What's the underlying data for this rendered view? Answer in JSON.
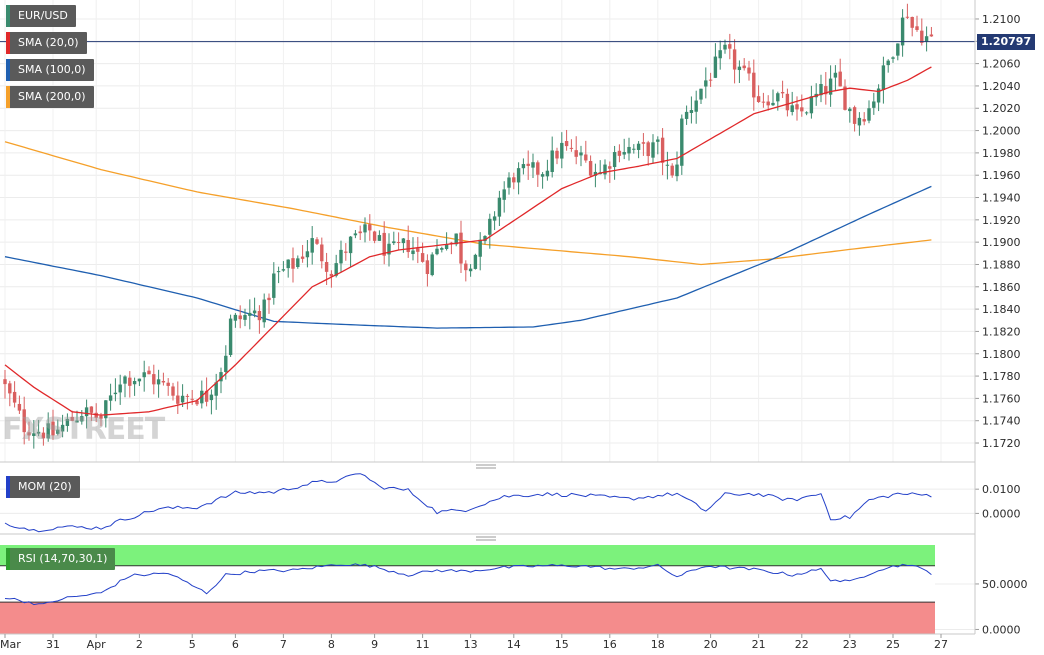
{
  "symbol": "EUR/USD",
  "watermark": "FXSTREET",
  "current_price_label": "1.20797",
  "colors": {
    "bull": "#3a8a6e",
    "bear": "#d95f5f",
    "sma20": "#e0282a",
    "sma100": "#1f5fb0",
    "sma200": "#f5a02a",
    "mom": "#2340c8",
    "rsi": "#2340c8",
    "rsi_over": "#7cf27c",
    "rsi_under": "#f48c8c",
    "price_line": "#243a73"
  },
  "legends": {
    "symbol": "EUR/USD",
    "sma20": "SMA (20,0)",
    "sma100": "SMA (100,0)",
    "sma200": "SMA (200,0)",
    "mom": "MOM (20)",
    "rsi": "RSI (14,70,30,1)"
  },
  "chart_data": [
    {
      "type": "candlestick",
      "title": "EUR/USD",
      "ylim": [
        1.1703,
        1.2117
      ],
      "yticks": [
        "1.2100",
        "1.2080",
        "1.2060",
        "1.2040",
        "1.2020",
        "1.2000",
        "1.1980",
        "1.1960",
        "1.1940",
        "1.1920",
        "1.1900",
        "1.1880",
        "1.1860",
        "1.1840",
        "1.1820",
        "1.1800",
        "1.1780",
        "1.1760",
        "1.1740",
        "1.1720"
      ],
      "xticks": [
        "Mar",
        "31",
        "Apr",
        "2",
        "5",
        "6",
        "7",
        "8",
        "9",
        "11",
        "13",
        "14",
        "15",
        "16",
        "18",
        "20",
        "21",
        "22",
        "23",
        "25",
        "27"
      ],
      "current_price": 1.20797,
      "anchors": {
        "close": [
          [
            0,
            1.177
          ],
          [
            4,
            1.1735
          ],
          [
            10,
            1.1728
          ],
          [
            16,
            1.1748
          ],
          [
            20,
            1.1742
          ],
          [
            24,
            1.1778
          ],
          [
            30,
            1.178
          ],
          [
            36,
            1.1762
          ],
          [
            42,
            1.1762
          ],
          [
            45,
            1.1788
          ],
          [
            48,
            1.183
          ],
          [
            54,
            1.184
          ],
          [
            56,
            1.1868
          ],
          [
            60,
            1.188
          ],
          [
            64,
            1.19
          ],
          [
            68,
            1.1875
          ],
          [
            72,
            1.19
          ],
          [
            76,
            1.191
          ],
          [
            80,
            1.189
          ],
          [
            84,
            1.1898
          ],
          [
            88,
            1.188
          ],
          [
            92,
            1.1905
          ],
          [
            96,
            1.188
          ],
          [
            100,
            1.19
          ],
          [
            103,
            1.194
          ],
          [
            106,
            1.196
          ],
          [
            112,
            1.1965
          ],
          [
            116,
            1.1985
          ],
          [
            120,
            1.1975
          ],
          [
            124,
            1.1962
          ],
          [
            128,
            1.1985
          ],
          [
            132,
            1.1982
          ],
          [
            136,
            1.1985
          ],
          [
            139,
            1.1955
          ],
          [
            142,
            1.2015
          ],
          [
            146,
            1.2045
          ],
          [
            150,
            1.207
          ],
          [
            153,
            1.2055
          ],
          [
            157,
            1.203
          ],
          [
            161,
            1.203
          ],
          [
            165,
            1.2012
          ],
          [
            169,
            1.203
          ],
          [
            173,
            1.2045
          ],
          [
            177,
            1.201
          ],
          [
            180,
            1.202
          ],
          [
            184,
            1.2062
          ],
          [
            187,
            1.2098
          ],
          [
            190,
            1.209
          ],
          [
            193,
            1.208
          ]
        ]
      },
      "series": [
        {
          "name": "SMA (20,0)",
          "anchors": [
            [
              0,
              1.179
            ],
            [
              6,
              1.177
            ],
            [
              14,
              1.1748
            ],
            [
              20,
              1.1745
            ],
            [
              30,
              1.1748
            ],
            [
              40,
              1.1758
            ],
            [
              48,
              1.179
            ],
            [
              56,
              1.1825
            ],
            [
              64,
              1.186
            ],
            [
              70,
              1.1873
            ],
            [
              76,
              1.1887
            ],
            [
              82,
              1.1893
            ],
            [
              92,
              1.1898
            ],
            [
              100,
              1.1902
            ],
            [
              108,
              1.1925
            ],
            [
              116,
              1.1948
            ],
            [
              124,
              1.1962
            ],
            [
              132,
              1.1968
            ],
            [
              140,
              1.1975
            ],
            [
              148,
              1.1995
            ],
            [
              156,
              1.2015
            ],
            [
              164,
              1.2025
            ],
            [
              172,
              1.2035
            ],
            [
              176,
              1.2038
            ],
            [
              182,
              1.2035
            ],
            [
              188,
              1.2045
            ],
            [
              193,
              1.2057
            ]
          ]
        },
        {
          "name": "SMA (100,0)",
          "anchors": [
            [
              0,
              1.1887
            ],
            [
              20,
              1.187
            ],
            [
              40,
              1.185
            ],
            [
              56,
              1.1829
            ],
            [
              72,
              1.1826
            ],
            [
              90,
              1.1823
            ],
            [
              110,
              1.1824
            ],
            [
              120,
              1.183
            ],
            [
              140,
              1.185
            ],
            [
              160,
              1.1885
            ],
            [
              170,
              1.1905
            ],
            [
              180,
              1.1925
            ],
            [
              193,
              1.195
            ]
          ]
        },
        {
          "name": "SMA (200,0)",
          "anchors": [
            [
              0,
              1.199
            ],
            [
              20,
              1.1965
            ],
            [
              40,
              1.1945
            ],
            [
              60,
              1.193
            ],
            [
              80,
              1.1913
            ],
            [
              100,
              1.1898
            ],
            [
              130,
              1.1887
            ],
            [
              145,
              1.188
            ],
            [
              160,
              1.1885
            ],
            [
              175,
              1.1893
            ],
            [
              193,
              1.1902
            ]
          ]
        }
      ]
    },
    {
      "type": "line",
      "title": "MOM (20)",
      "ylim": [
        -0.0085,
        0.0175
      ],
      "yticks": [
        "0.0100",
        "0.0000"
      ],
      "series": [
        {
          "name": "MOM (20)",
          "anchors": [
            [
              0,
              -0.004
            ],
            [
              6,
              -0.007
            ],
            [
              12,
              -0.0055
            ],
            [
              20,
              -0.006
            ],
            [
              24,
              -0.003
            ],
            [
              32,
              0.002
            ],
            [
              40,
              0.0025
            ],
            [
              48,
              0.0085
            ],
            [
              56,
              0.0088
            ],
            [
              64,
              0.0125
            ],
            [
              70,
              0.0138
            ],
            [
              74,
              0.0168
            ],
            [
              78,
              0.011
            ],
            [
              84,
              0.0095
            ],
            [
              90,
              0.0005
            ],
            [
              96,
              0.0015
            ],
            [
              104,
              0.007
            ],
            [
              112,
              0.008
            ],
            [
              120,
              0.0075
            ],
            [
              130,
              0.006
            ],
            [
              140,
              0.0082
            ],
            [
              146,
              0.001
            ],
            [
              150,
              0.0078
            ],
            [
              156,
              0.0081
            ],
            [
              164,
              0.0054
            ],
            [
              170,
              0.0082
            ],
            [
              172,
              -0.002
            ],
            [
              176,
              -0.0016
            ],
            [
              180,
              0.0055
            ],
            [
              186,
              0.0081
            ],
            [
              193,
              0.0075
            ]
          ]
        }
      ]
    },
    {
      "type": "line",
      "title": "RSI (14,70,30,1)",
      "ylim": [
        -5,
        95
      ],
      "yticks": [
        "50.0000",
        "0.0000"
      ],
      "overbought": 70,
      "oversold": 30,
      "series": [
        {
          "name": "RSI (14,70,30,1)",
          "anchors": [
            [
              0,
              35
            ],
            [
              8,
              27
            ],
            [
              12,
              34
            ],
            [
              20,
              40
            ],
            [
              26,
              59
            ],
            [
              34,
              62
            ],
            [
              42,
              40
            ],
            [
              46,
              60
            ],
            [
              52,
              64
            ],
            [
              60,
              65
            ],
            [
              70,
              72
            ],
            [
              76,
              70
            ],
            [
              84,
              60
            ],
            [
              90,
              65
            ],
            [
              96,
              64
            ],
            [
              104,
              68
            ],
            [
              112,
              70
            ],
            [
              120,
              70
            ],
            [
              128,
              66
            ],
            [
              136,
              70
            ],
            [
              140,
              58
            ],
            [
              146,
              70
            ],
            [
              150,
              68
            ],
            [
              156,
              66
            ],
            [
              164,
              60
            ],
            [
              170,
              66
            ],
            [
              172,
              55
            ],
            [
              176,
              52
            ],
            [
              182,
              66
            ],
            [
              188,
              72
            ],
            [
              193,
              62
            ]
          ]
        }
      ]
    }
  ]
}
